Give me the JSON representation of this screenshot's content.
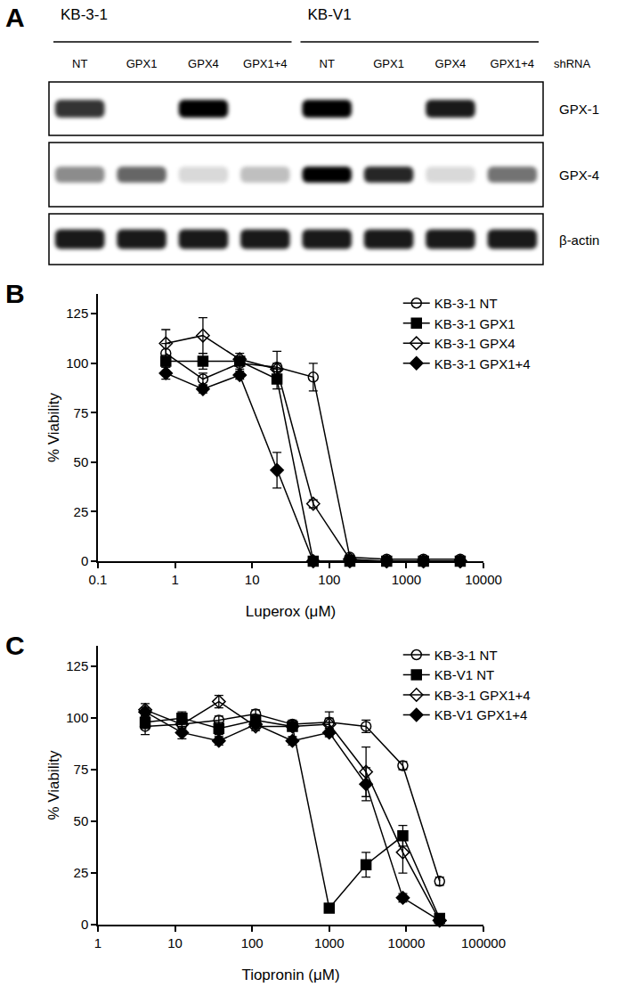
{
  "figure_a": {
    "label": "A",
    "groups": [
      {
        "name": "KB-3-1"
      },
      {
        "name": "KB-V1"
      }
    ],
    "lane_labels": [
      "NT",
      "GPX1",
      "GPX4",
      "GPX1+4",
      "NT",
      "GPX1",
      "GPX4",
      "GPX1+4"
    ],
    "lane_axis_label": "shRNA",
    "blots": [
      {
        "name": "GPX-1",
        "intensity": [
          0.8,
          0,
          1,
          0,
          1,
          0,
          0.9,
          0
        ]
      },
      {
        "name": "GPX-4",
        "intensity": [
          0.45,
          0.6,
          0.15,
          0.25,
          1,
          0.85,
          0.15,
          0.55
        ]
      },
      {
        "name": "β-actin",
        "intensity": [
          0.9,
          0.9,
          0.9,
          0.9,
          0.9,
          0.9,
          0.9,
          0.9
        ]
      }
    ]
  },
  "chart_data": [
    {
      "label": "B",
      "type": "line",
      "log": "x",
      "legend": "upper right",
      "x_label": "Luperox (μM)",
      "y_label": "% Viability",
      "x": [
        0.76,
        2.3,
        6.9,
        21,
        62,
        185,
        556,
        1667,
        5000
      ],
      "xlim": [
        0.1,
        10000
      ],
      "xticks": [
        0.1,
        1,
        10,
        100,
        1000,
        10000
      ],
      "ylim": [
        0,
        135
      ],
      "yticks": [
        0,
        25,
        50,
        75,
        100,
        125
      ],
      "series": [
        {
          "name": "KB-3-1 NT",
          "color": "#000000",
          "marker": "circle-open",
          "line_style": "solid",
          "values": [
            105,
            92,
            100,
            98,
            93,
            2,
            1,
            1,
            1
          ],
          "errors": [
            5,
            3,
            3,
            8,
            7,
            1,
            0,
            0,
            0
          ]
        },
        {
          "name": "KB-3-1 GPX1",
          "color": "#000000",
          "marker": "square",
          "line_style": "solid",
          "values": [
            101,
            101,
            101,
            92,
            0,
            0,
            0,
            0,
            0
          ],
          "errors": [
            3,
            4,
            2,
            5,
            0,
            0,
            0,
            0,
            0
          ]
        },
        {
          "name": "KB-3-1 GPX4",
          "color": "#000000",
          "marker": "diamond-open",
          "line_style": "solid",
          "values": [
            110,
            114,
            102,
            97,
            29,
            1,
            0,
            0,
            0
          ],
          "errors": [
            7,
            9,
            3,
            3,
            2,
            0,
            0,
            0,
            0
          ]
        },
        {
          "name": "KB-3-1 GPX1+4",
          "color": "#000000",
          "marker": "diamond",
          "line_style": "solid",
          "values": [
            95,
            87,
            94,
            46,
            0,
            0,
            0,
            0,
            0
          ],
          "errors": [
            3,
            2,
            2,
            9,
            0,
            0,
            0,
            0,
            0
          ]
        }
      ]
    },
    {
      "label": "C",
      "type": "line",
      "log": "x",
      "legend": "upper right",
      "x_label": "Tiopronin (μM)",
      "y_label": "% Viability",
      "x": [
        4.1,
        12.3,
        37,
        111,
        333,
        1000,
        3000,
        9000,
        27000
      ],
      "xlim": [
        1,
        100000
      ],
      "xticks": [
        1,
        10,
        100,
        1000,
        10000,
        100000
      ],
      "ylim": [
        0,
        135
      ],
      "yticks": [
        0,
        25,
        50,
        75,
        100,
        125
      ],
      "series": [
        {
          "name": "KB-3-1 NT",
          "color": "#000000",
          "marker": "circle-open",
          "line_style": "solid",
          "values": [
            96,
            97,
            99,
            102,
            97,
            98,
            96,
            77,
            21
          ],
          "errors": [
            4,
            3,
            2,
            2,
            2,
            5,
            3,
            2,
            2
          ]
        },
        {
          "name": "KB-V1 NT",
          "color": "#000000",
          "marker": "square",
          "line_style": "solid",
          "values": [
            98,
            100,
            95,
            99,
            96,
            8,
            29,
            43,
            3
          ],
          "errors": [
            3,
            3,
            3,
            2,
            2,
            1,
            6,
            5,
            2
          ]
        },
        {
          "name": "KB-3-1 GPX1+4",
          "color": "#000000",
          "marker": "diamond-open",
          "line_style": "solid",
          "values": [
            104,
            97,
            108,
            96,
            96,
            97,
            74,
            35,
            2
          ],
          "errors": [
            3,
            2,
            3,
            2,
            2,
            3,
            12,
            10,
            2
          ]
        },
        {
          "name": "KB-V1 GPX1+4",
          "color": "#000000",
          "marker": "diamond",
          "line_style": "solid",
          "values": [
            103,
            93,
            89,
            97,
            89,
            93,
            68,
            13,
            2
          ],
          "errors": [
            2,
            3,
            2,
            2,
            2,
            2,
            8,
            2,
            1
          ]
        }
      ]
    }
  ]
}
